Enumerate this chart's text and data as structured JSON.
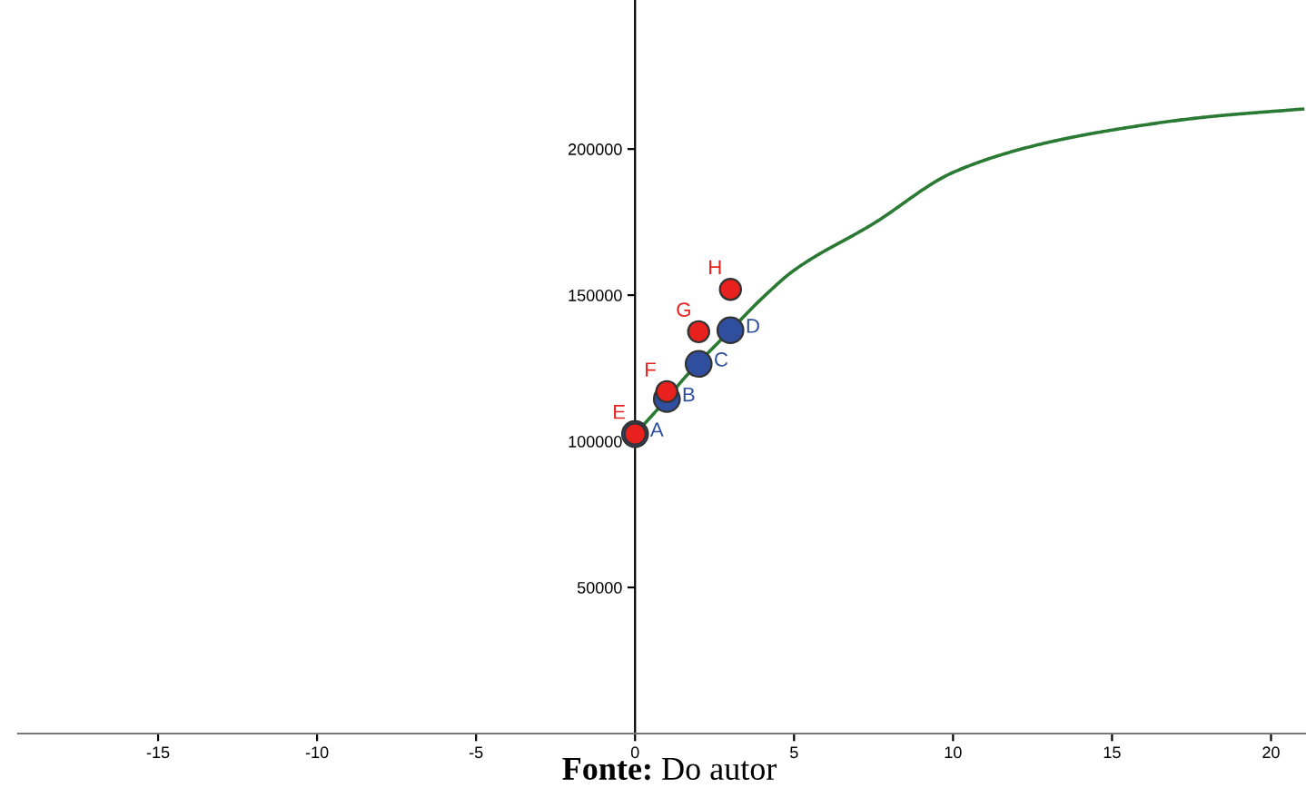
{
  "chart_data": {
    "type": "line",
    "xlim": [
      -19.4,
      21.1
    ],
    "ylim": [
      0,
      251000
    ],
    "xticks": [
      -15,
      -10,
      -5,
      0,
      5,
      10,
      15,
      20
    ],
    "yticks": [
      50000,
      100000,
      150000,
      200000
    ],
    "grid": false,
    "series": [
      {
        "type": "line",
        "color": "#2a7a34",
        "marker": "none",
        "line_style": "solid",
        "x": [
          0,
          1,
          1.5,
          2,
          2.5,
          3,
          4,
          5,
          7.5,
          10,
          12.5,
          15,
          18,
          21
        ],
        "values": [
          102500,
          114500,
          121000,
          127000,
          132500,
          138000,
          149000,
          158500,
          174500,
          192000,
          201000,
          206500,
          211000,
          213700
        ]
      },
      {
        "type": "scatter",
        "color": "#2f4f9e",
        "marker": "circle",
        "x": [
          0,
          1,
          2,
          3
        ],
        "values": [
          102500,
          114500,
          126500,
          138000
        ]
      },
      {
        "type": "scatter",
        "color": "#e8211e",
        "marker": "circle",
        "x": [
          0,
          1,
          2,
          3
        ],
        "values": [
          102500,
          117000,
          137500,
          152000
        ]
      }
    ],
    "annotations": [
      {
        "text": "A",
        "x": 0,
        "y": 102500
      },
      {
        "text": "B",
        "x": 1,
        "y": 114500
      },
      {
        "text": "C",
        "x": 2,
        "y": 126500
      },
      {
        "text": "D",
        "x": 3,
        "y": 138000
      },
      {
        "text": "E",
        "x": 0,
        "y": 102500
      },
      {
        "text": "F",
        "x": 1,
        "y": 117000
      },
      {
        "text": "G",
        "x": 2,
        "y": 137500
      },
      {
        "text": "H",
        "x": 3,
        "y": 152000
      },
      "Fonte: Do autor"
    ]
  }
}
